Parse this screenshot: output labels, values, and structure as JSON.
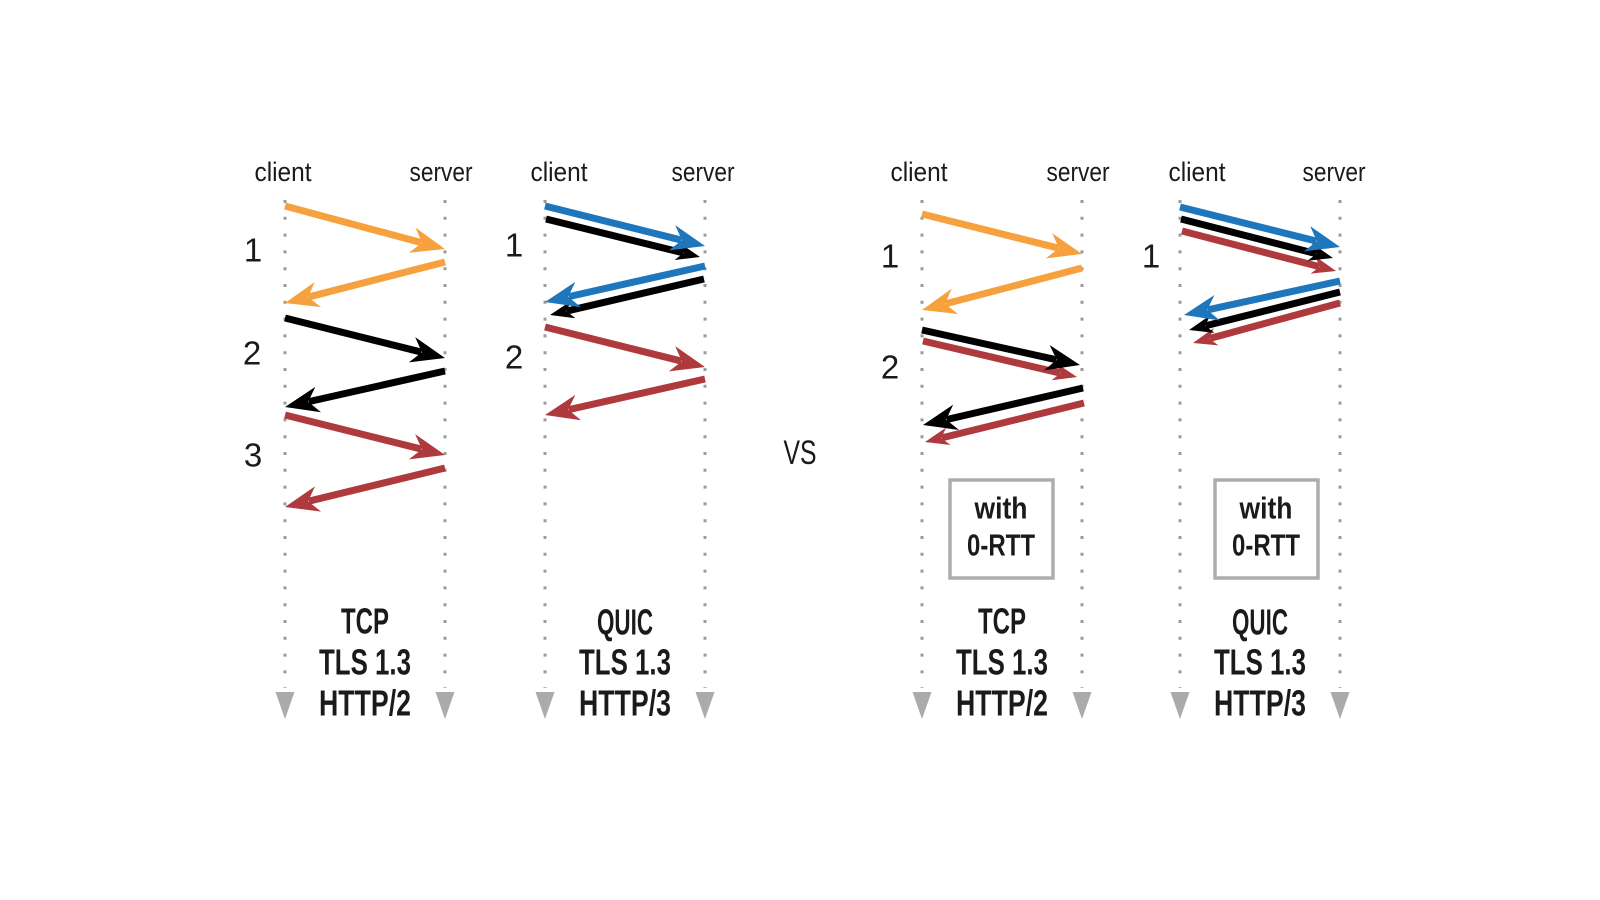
{
  "vs_label": "VS",
  "colors": {
    "tcp": "#F6A03E",
    "quic": "#1E76BC",
    "tls13": "#000000",
    "http2": "#AE3A3E",
    "http3": "#AE3A3E",
    "text": "#1A1A1A",
    "timeline_dots": "#9B9B9B",
    "timeline_arrow": "#ABABAB",
    "badge_border": "#ADADAD"
  },
  "panels": [
    {
      "name": "tcp-tls13-http2",
      "client_label": "client",
      "server_label": "server",
      "round_trip_numbers": [
        "1",
        "2",
        "3"
      ],
      "badge_lines": [],
      "flows": [
        {
          "direction": "client-to-server",
          "protocols": [
            "tcp"
          ]
        },
        {
          "direction": "server-to-client",
          "protocols": [
            "tcp"
          ]
        },
        {
          "direction": "client-to-server",
          "protocols": [
            "tls13"
          ]
        },
        {
          "direction": "server-to-client",
          "protocols": [
            "tls13"
          ]
        },
        {
          "direction": "client-to-server",
          "protocols": [
            "http2"
          ]
        },
        {
          "direction": "server-to-client",
          "protocols": [
            "http2"
          ]
        }
      ],
      "stack": [
        {
          "label": "TCP",
          "color": "#F6A03E"
        },
        {
          "label": "TLS 1.3",
          "color": "#000000"
        },
        {
          "label": "HTTP/2",
          "color": "#AE3A3E"
        }
      ]
    },
    {
      "name": "quic-tls13-http3",
      "client_label": "client",
      "server_label": "server",
      "round_trip_numbers": [
        "1",
        "2"
      ],
      "badge_lines": [],
      "flows": [
        {
          "direction": "client-to-server",
          "protocols": [
            "quic",
            "tls13"
          ]
        },
        {
          "direction": "server-to-client",
          "protocols": [
            "quic",
            "tls13"
          ]
        },
        {
          "direction": "client-to-server",
          "protocols": [
            "http3"
          ]
        },
        {
          "direction": "server-to-client",
          "protocols": [
            "http3"
          ]
        }
      ],
      "stack": [
        {
          "label": "QUIC",
          "color": "#1E76BC"
        },
        {
          "label": "TLS 1.3",
          "color": "#000000"
        },
        {
          "label": "HTTP/3",
          "color": "#AE3A3E"
        }
      ]
    },
    {
      "name": "tcp-tls13-http2-0rtt",
      "client_label": "client",
      "server_label": "server",
      "round_trip_numbers": [
        "1",
        "2"
      ],
      "badge_lines": [
        "with",
        "0-RTT"
      ],
      "flows": [
        {
          "direction": "client-to-server",
          "protocols": [
            "tcp"
          ]
        },
        {
          "direction": "server-to-client",
          "protocols": [
            "tcp"
          ]
        },
        {
          "direction": "client-to-server",
          "protocols": [
            "tls13",
            "http2"
          ]
        },
        {
          "direction": "server-to-client",
          "protocols": [
            "tls13",
            "http2"
          ]
        }
      ],
      "stack": [
        {
          "label": "TCP",
          "color": "#F6A03E"
        },
        {
          "label": "TLS 1.3",
          "color": "#000000"
        },
        {
          "label": "HTTP/2",
          "color": "#AE3A3E"
        }
      ]
    },
    {
      "name": "quic-tls13-http3-0rtt",
      "client_label": "client",
      "server_label": "server",
      "round_trip_numbers": [
        "1"
      ],
      "badge_lines": [
        "with",
        "0-RTT"
      ],
      "flows": [
        {
          "direction": "client-to-server",
          "protocols": [
            "quic",
            "tls13",
            "http3"
          ]
        },
        {
          "direction": "server-to-client",
          "protocols": [
            "quic",
            "tls13",
            "http3"
          ]
        }
      ],
      "stack": [
        {
          "label": "QUIC",
          "color": "#1E76BC"
        },
        {
          "label": "TLS 1.3",
          "color": "#000000"
        },
        {
          "label": "HTTP/3",
          "color": "#AE3A3E"
        }
      ]
    }
  ]
}
